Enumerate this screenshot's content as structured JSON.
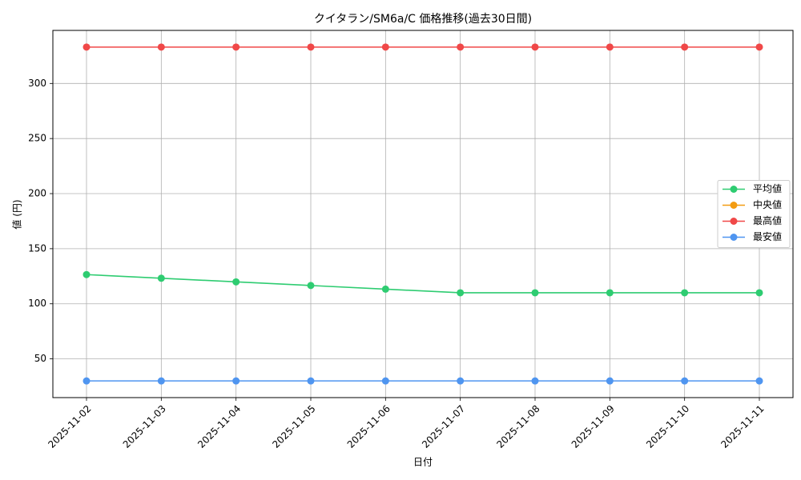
{
  "chart_data": {
    "type": "line",
    "title": "クイタラン/SM6a/C 価格推移(過去30日間)",
    "x_label": "日付",
    "y_label": "値 (円)",
    "categories": [
      "2025-11-02",
      "2025-11-03",
      "2025-11-04",
      "2025-11-05",
      "2025-11-06",
      "2025-11-07",
      "2025-11-08",
      "2025-11-09",
      "2025-11-10",
      "2025-11-11"
    ],
    "series": [
      {
        "name": "平均値",
        "color": "#2ecc71",
        "values": [
          126.5,
          123.2,
          119.9,
          116.6,
          113.3,
          110,
          110,
          110,
          110,
          110
        ]
      },
      {
        "name": "中央値",
        "color": "#f39c12",
        "values": [
          null,
          null,
          null,
          null,
          null,
          null,
          null,
          null,
          null,
          null
        ]
      },
      {
        "name": "最高値",
        "color": "#f04848",
        "values": [
          333,
          333,
          333,
          333,
          333,
          333,
          333,
          333,
          333,
          333
        ]
      },
      {
        "name": "最安値",
        "color": "#4f95f0",
        "values": [
          30,
          30,
          30,
          30,
          30,
          30,
          30,
          30,
          30,
          30
        ]
      }
    ],
    "ylim": [
      14.85,
      348.15
    ],
    "yticks": [
      50,
      100,
      150,
      200,
      250,
      300
    ],
    "grid": true,
    "legend": "center right"
  }
}
